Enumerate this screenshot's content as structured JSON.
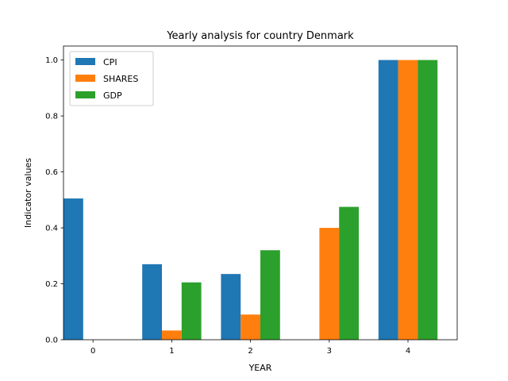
{
  "chart_data": {
    "type": "bar",
    "title": "Yearly analysis for country Denmark",
    "xlabel": "YEAR",
    "ylabel": "Indicator values",
    "categories": [
      "0",
      "1",
      "2",
      "3",
      "4"
    ],
    "x": [
      0,
      1,
      2,
      3,
      4
    ],
    "ylim": [
      0.0,
      1.05
    ],
    "yticks": [
      0.0,
      0.2,
      0.4,
      0.6,
      0.8,
      1.0
    ],
    "ytick_labels": [
      "0.0",
      "0.2",
      "0.4",
      "0.6",
      "0.8",
      "1.0"
    ],
    "xlim": [
      -0.375,
      4.625
    ],
    "bar_width": 0.25,
    "grid": false,
    "legend_position": "top-left",
    "series": [
      {
        "name": "CPI",
        "color": "#1f77b4",
        "values": [
          0.505,
          0.27,
          0.235,
          0.0,
          1.0
        ]
      },
      {
        "name": "SHARES",
        "color": "#ff7f0e",
        "values": [
          0.0,
          0.033,
          0.09,
          0.4,
          1.0
        ]
      },
      {
        "name": "GDP",
        "color": "#2ca02c",
        "values": [
          0.0,
          0.205,
          0.32,
          0.475,
          1.0
        ]
      }
    ]
  }
}
